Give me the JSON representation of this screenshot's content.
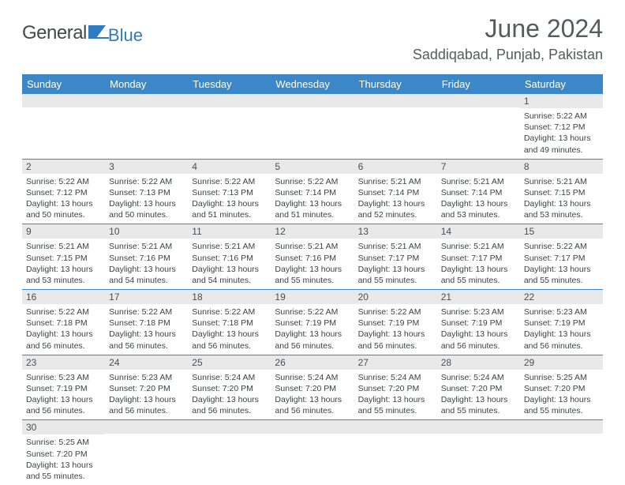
{
  "brand": {
    "part1": "General",
    "part2": "Blue"
  },
  "title": "June 2024",
  "location": "Saddiqabad, Punjab, Pakistan",
  "colors": {
    "header_bg": "#3c87c7",
    "header_text": "#ffffff",
    "daynum_bg": "#e9e9e9",
    "border": "#3c87c7",
    "brand_gray": "#44494c",
    "brand_blue": "#2e7bbf",
    "title_color": "#555b5f"
  },
  "day_headers": [
    "Sunday",
    "Monday",
    "Tuesday",
    "Wednesday",
    "Thursday",
    "Friday",
    "Saturday"
  ],
  "weeks": [
    [
      {
        "n": "",
        "sr": "",
        "ss": "",
        "dl": ""
      },
      {
        "n": "",
        "sr": "",
        "ss": "",
        "dl": ""
      },
      {
        "n": "",
        "sr": "",
        "ss": "",
        "dl": ""
      },
      {
        "n": "",
        "sr": "",
        "ss": "",
        "dl": ""
      },
      {
        "n": "",
        "sr": "",
        "ss": "",
        "dl": ""
      },
      {
        "n": "",
        "sr": "",
        "ss": "",
        "dl": ""
      },
      {
        "n": "1",
        "sr": "Sunrise: 5:22 AM",
        "ss": "Sunset: 7:12 PM",
        "dl": "Daylight: 13 hours and 49 minutes."
      }
    ],
    [
      {
        "n": "2",
        "sr": "Sunrise: 5:22 AM",
        "ss": "Sunset: 7:12 PM",
        "dl": "Daylight: 13 hours and 50 minutes."
      },
      {
        "n": "3",
        "sr": "Sunrise: 5:22 AM",
        "ss": "Sunset: 7:13 PM",
        "dl": "Daylight: 13 hours and 50 minutes."
      },
      {
        "n": "4",
        "sr": "Sunrise: 5:22 AM",
        "ss": "Sunset: 7:13 PM",
        "dl": "Daylight: 13 hours and 51 minutes."
      },
      {
        "n": "5",
        "sr": "Sunrise: 5:22 AM",
        "ss": "Sunset: 7:14 PM",
        "dl": "Daylight: 13 hours and 51 minutes."
      },
      {
        "n": "6",
        "sr": "Sunrise: 5:21 AM",
        "ss": "Sunset: 7:14 PM",
        "dl": "Daylight: 13 hours and 52 minutes."
      },
      {
        "n": "7",
        "sr": "Sunrise: 5:21 AM",
        "ss": "Sunset: 7:14 PM",
        "dl": "Daylight: 13 hours and 53 minutes."
      },
      {
        "n": "8",
        "sr": "Sunrise: 5:21 AM",
        "ss": "Sunset: 7:15 PM",
        "dl": "Daylight: 13 hours and 53 minutes."
      }
    ],
    [
      {
        "n": "9",
        "sr": "Sunrise: 5:21 AM",
        "ss": "Sunset: 7:15 PM",
        "dl": "Daylight: 13 hours and 53 minutes."
      },
      {
        "n": "10",
        "sr": "Sunrise: 5:21 AM",
        "ss": "Sunset: 7:16 PM",
        "dl": "Daylight: 13 hours and 54 minutes."
      },
      {
        "n": "11",
        "sr": "Sunrise: 5:21 AM",
        "ss": "Sunset: 7:16 PM",
        "dl": "Daylight: 13 hours and 54 minutes."
      },
      {
        "n": "12",
        "sr": "Sunrise: 5:21 AM",
        "ss": "Sunset: 7:16 PM",
        "dl": "Daylight: 13 hours and 55 minutes."
      },
      {
        "n": "13",
        "sr": "Sunrise: 5:21 AM",
        "ss": "Sunset: 7:17 PM",
        "dl": "Daylight: 13 hours and 55 minutes."
      },
      {
        "n": "14",
        "sr": "Sunrise: 5:21 AM",
        "ss": "Sunset: 7:17 PM",
        "dl": "Daylight: 13 hours and 55 minutes."
      },
      {
        "n": "15",
        "sr": "Sunrise: 5:22 AM",
        "ss": "Sunset: 7:17 PM",
        "dl": "Daylight: 13 hours and 55 minutes."
      }
    ],
    [
      {
        "n": "16",
        "sr": "Sunrise: 5:22 AM",
        "ss": "Sunset: 7:18 PM",
        "dl": "Daylight: 13 hours and 56 minutes."
      },
      {
        "n": "17",
        "sr": "Sunrise: 5:22 AM",
        "ss": "Sunset: 7:18 PM",
        "dl": "Daylight: 13 hours and 56 minutes."
      },
      {
        "n": "18",
        "sr": "Sunrise: 5:22 AM",
        "ss": "Sunset: 7:18 PM",
        "dl": "Daylight: 13 hours and 56 minutes."
      },
      {
        "n": "19",
        "sr": "Sunrise: 5:22 AM",
        "ss": "Sunset: 7:19 PM",
        "dl": "Daylight: 13 hours and 56 minutes."
      },
      {
        "n": "20",
        "sr": "Sunrise: 5:22 AM",
        "ss": "Sunset: 7:19 PM",
        "dl": "Daylight: 13 hours and 56 minutes."
      },
      {
        "n": "21",
        "sr": "Sunrise: 5:23 AM",
        "ss": "Sunset: 7:19 PM",
        "dl": "Daylight: 13 hours and 56 minutes."
      },
      {
        "n": "22",
        "sr": "Sunrise: 5:23 AM",
        "ss": "Sunset: 7:19 PM",
        "dl": "Daylight: 13 hours and 56 minutes."
      }
    ],
    [
      {
        "n": "23",
        "sr": "Sunrise: 5:23 AM",
        "ss": "Sunset: 7:19 PM",
        "dl": "Daylight: 13 hours and 56 minutes."
      },
      {
        "n": "24",
        "sr": "Sunrise: 5:23 AM",
        "ss": "Sunset: 7:20 PM",
        "dl": "Daylight: 13 hours and 56 minutes."
      },
      {
        "n": "25",
        "sr": "Sunrise: 5:24 AM",
        "ss": "Sunset: 7:20 PM",
        "dl": "Daylight: 13 hours and 56 minutes."
      },
      {
        "n": "26",
        "sr": "Sunrise: 5:24 AM",
        "ss": "Sunset: 7:20 PM",
        "dl": "Daylight: 13 hours and 56 minutes."
      },
      {
        "n": "27",
        "sr": "Sunrise: 5:24 AM",
        "ss": "Sunset: 7:20 PM",
        "dl": "Daylight: 13 hours and 55 minutes."
      },
      {
        "n": "28",
        "sr": "Sunrise: 5:24 AM",
        "ss": "Sunset: 7:20 PM",
        "dl": "Daylight: 13 hours and 55 minutes."
      },
      {
        "n": "29",
        "sr": "Sunrise: 5:25 AM",
        "ss": "Sunset: 7:20 PM",
        "dl": "Daylight: 13 hours and 55 minutes."
      }
    ],
    [
      {
        "n": "30",
        "sr": "Sunrise: 5:25 AM",
        "ss": "Sunset: 7:20 PM",
        "dl": "Daylight: 13 hours and 55 minutes."
      },
      {
        "n": "",
        "sr": "",
        "ss": "",
        "dl": ""
      },
      {
        "n": "",
        "sr": "",
        "ss": "",
        "dl": ""
      },
      {
        "n": "",
        "sr": "",
        "ss": "",
        "dl": ""
      },
      {
        "n": "",
        "sr": "",
        "ss": "",
        "dl": ""
      },
      {
        "n": "",
        "sr": "",
        "ss": "",
        "dl": ""
      },
      {
        "n": "",
        "sr": "",
        "ss": "",
        "dl": ""
      }
    ]
  ]
}
